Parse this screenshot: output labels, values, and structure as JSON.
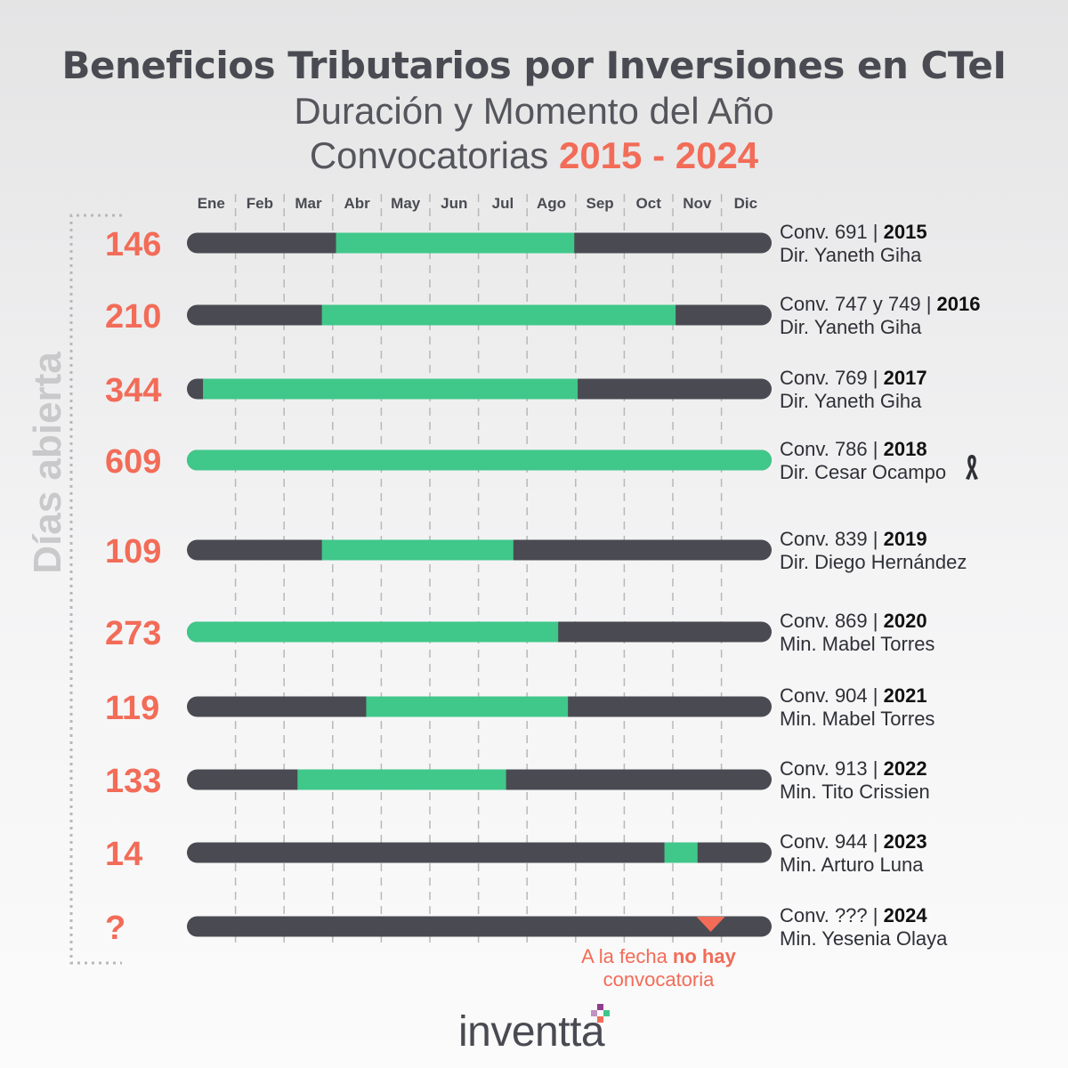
{
  "title": {
    "line1": "Beneficios Tributarios por Inversiones en CTeI",
    "line2": "Duración y Momento del Año",
    "line3_prefix": "Convocatorias",
    "line3_accent": "2015 - 2024"
  },
  "colors": {
    "track": "#4a4b52",
    "open": "#40c78a",
    "accent": "#f26c58",
    "grid": "#b8b8bb"
  },
  "chart_data": {
    "type": "timeline-bar",
    "xlabel": "",
    "ylabel": "Días abierta",
    "months": [
      "Ene",
      "Feb",
      "Mar",
      "Abr",
      "May",
      "Jun",
      "Jul",
      "Ago",
      "Sep",
      "Oct",
      "Nov",
      "Dic"
    ],
    "x_domain_months": [
      0,
      12
    ],
    "rows": [
      {
        "days": "146",
        "conv": "Conv. 691 | ",
        "year": "2015",
        "leader": "Dir. Yaneth Giha",
        "open_start": 3.06,
        "open_end": 7.95
      },
      {
        "days": "210",
        "conv": "Conv. 747 y 749 | ",
        "year": "2016",
        "leader": "Dir. Yaneth Giha",
        "open_start": 2.77,
        "open_end": 10.03
      },
      {
        "days": "344",
        "conv": "Conv. 769 | ",
        "year": "2017",
        "leader": "Dir. Yaneth Giha",
        "open_start": 0.33,
        "open_end": 8.02
      },
      {
        "days": "609",
        "conv": "Conv. 786 | ",
        "year": "2018",
        "leader": "Dir. Cesar Ocampo",
        "open_start": 0.0,
        "open_end": 12.0
      },
      {
        "days": "109",
        "conv": "Conv. 839 | ",
        "year": "2019",
        "leader": "Dir. Diego Hernández",
        "open_start": 2.77,
        "open_end": 6.7
      },
      {
        "days": "273",
        "conv": "Conv. 869 | ",
        "year": "2020",
        "leader": "Min. Mabel Torres",
        "open_start": 0.0,
        "open_end": 7.62
      },
      {
        "days": "119",
        "conv": "Conv. 904 | ",
        "year": "2021",
        "leader": "Min. Mabel Torres",
        "open_start": 3.68,
        "open_end": 7.82
      },
      {
        "days": "133",
        "conv": "Conv. 913 | ",
        "year": "2022",
        "leader": "Min. Tito Crissien",
        "open_start": 2.27,
        "open_end": 6.55
      },
      {
        "days": "14",
        "conv": "Conv. 944 | ",
        "year": "2023",
        "leader": "Min. Arturo Luna",
        "open_start": 9.8,
        "open_end": 10.48
      },
      {
        "days": "?",
        "conv": "Conv. ??? | ",
        "year": "2024",
        "leader": "Min. Yesenia Olaya",
        "open_start": null,
        "open_end": null,
        "marker_month": 10.75
      }
    ]
  },
  "footnote": {
    "part1": "A la fecha ",
    "bold": "no hay",
    "part2": "convocatoria"
  },
  "logo": {
    "text": "inventta"
  }
}
